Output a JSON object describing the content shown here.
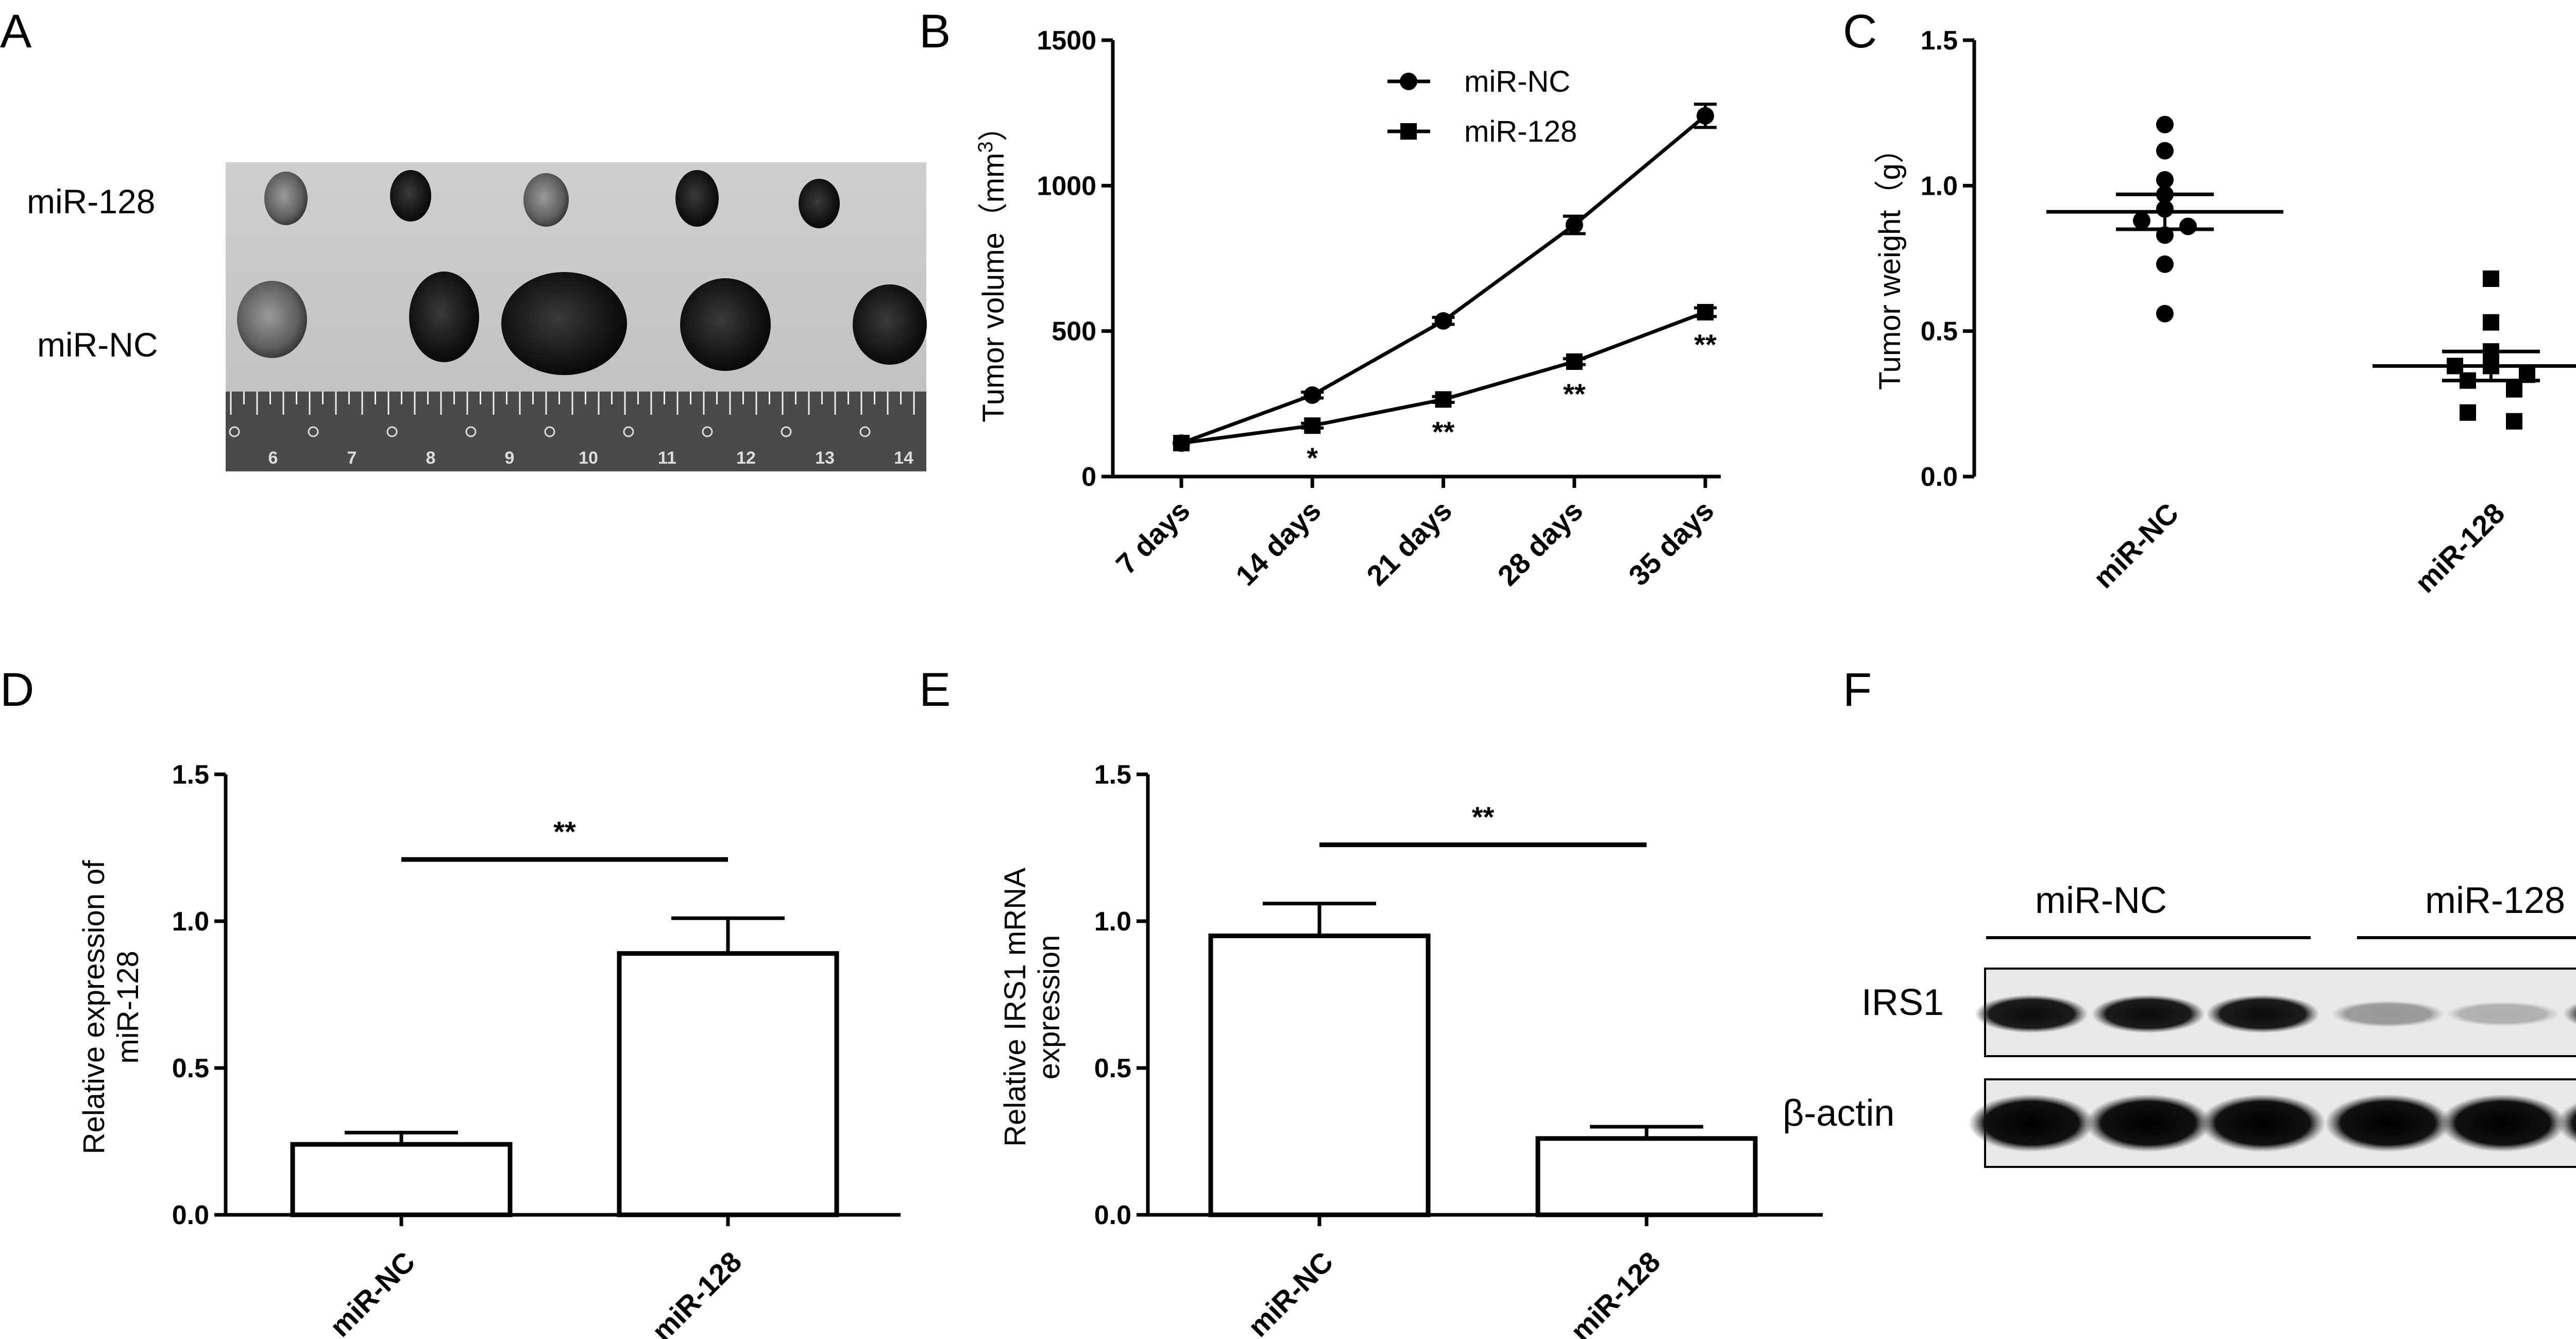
{
  "panels": {
    "a": {
      "letter": "A",
      "row_labels": [
        "miR-128",
        "miR-NC"
      ],
      "ruler_numbers": [
        "6",
        "7",
        "8",
        "9",
        "10",
        "11",
        "12",
        "13",
        "14"
      ]
    },
    "f": {
      "letter": "F",
      "group_labels": [
        "miR-NC",
        "miR-128"
      ],
      "row_labels": [
        "IRS1",
        "β-actin"
      ],
      "irs1_intensity": [
        0.95,
        0.95,
        0.95,
        0.35,
        0.25,
        0.75
      ],
      "actin_intensity": [
        1,
        1,
        1,
        1,
        1,
        1
      ]
    }
  },
  "chart_data": [
    {
      "panel": "B",
      "type": "line",
      "categories": [
        "7 days",
        "14 days",
        "21 days",
        "28 days",
        "35 days"
      ],
      "ylabel": "Tumor volume（mm",
      "ylabel_sup": "3",
      "ylabel_tail": "）",
      "ylim": [
        0,
        1500
      ],
      "yticks": [
        "0",
        "500",
        "1000",
        "1500"
      ],
      "legend_position": "top-center",
      "series": [
        {
          "name": "miR-NC",
          "marker": "circle",
          "values": [
            115,
            280,
            535,
            865,
            1240
          ],
          "errors": [
            0,
            10,
            12,
            30,
            40
          ]
        },
        {
          "name": "miR-128",
          "marker": "square",
          "values": [
            115,
            175,
            265,
            395,
            565
          ],
          "errors": [
            0,
            8,
            10,
            10,
            15
          ]
        }
      ],
      "annotations": [
        "",
        "*",
        "**",
        "**",
        "**"
      ]
    },
    {
      "panel": "C",
      "type": "scatter",
      "categories": [
        "miR-NC",
        "miR-128"
      ],
      "ylabel": "Tumor weight（g）",
      "ylim": [
        0,
        1.5
      ],
      "yticks": [
        "0.0",
        "0.5",
        "1.0",
        "1.5"
      ],
      "groups": [
        {
          "name": "miR-NC",
          "marker": "circle",
          "mean": 0.91,
          "sem": 0.06,
          "points": [
            1.21,
            1.12,
            1.02,
            0.97,
            0.92,
            0.88,
            0.86,
            0.83,
            0.73,
            0.56
          ]
        },
        {
          "name": "miR-128",
          "marker": "square",
          "mean": 0.38,
          "sem": 0.05,
          "points": [
            0.68,
            0.53,
            0.43,
            0.38,
            0.38,
            0.35,
            0.33,
            0.3,
            0.22,
            0.19
          ]
        }
      ]
    },
    {
      "panel": "D",
      "type": "bar",
      "categories": [
        "miR-NC",
        "miR-128"
      ],
      "values": [
        0.24,
        0.89
      ],
      "errors": [
        0.04,
        0.12
      ],
      "ylabel": [
        "Relative expression of",
        "miR-128"
      ],
      "ylim": [
        0,
        1.5
      ],
      "yticks": [
        "0.0",
        "0.5",
        "1.0",
        "1.5"
      ],
      "significance": "**"
    },
    {
      "panel": "E",
      "type": "bar",
      "categories": [
        "miR-NC",
        "miR-128"
      ],
      "values": [
        0.95,
        0.26
      ],
      "errors": [
        0.11,
        0.04
      ],
      "ylabel": [
        "Relative IRS1 mRNA",
        "expression"
      ],
      "ylim": [
        0,
        1.5
      ],
      "yticks": [
        "0.0",
        "0.5",
        "1.0",
        "1.5"
      ],
      "significance": "**"
    }
  ]
}
